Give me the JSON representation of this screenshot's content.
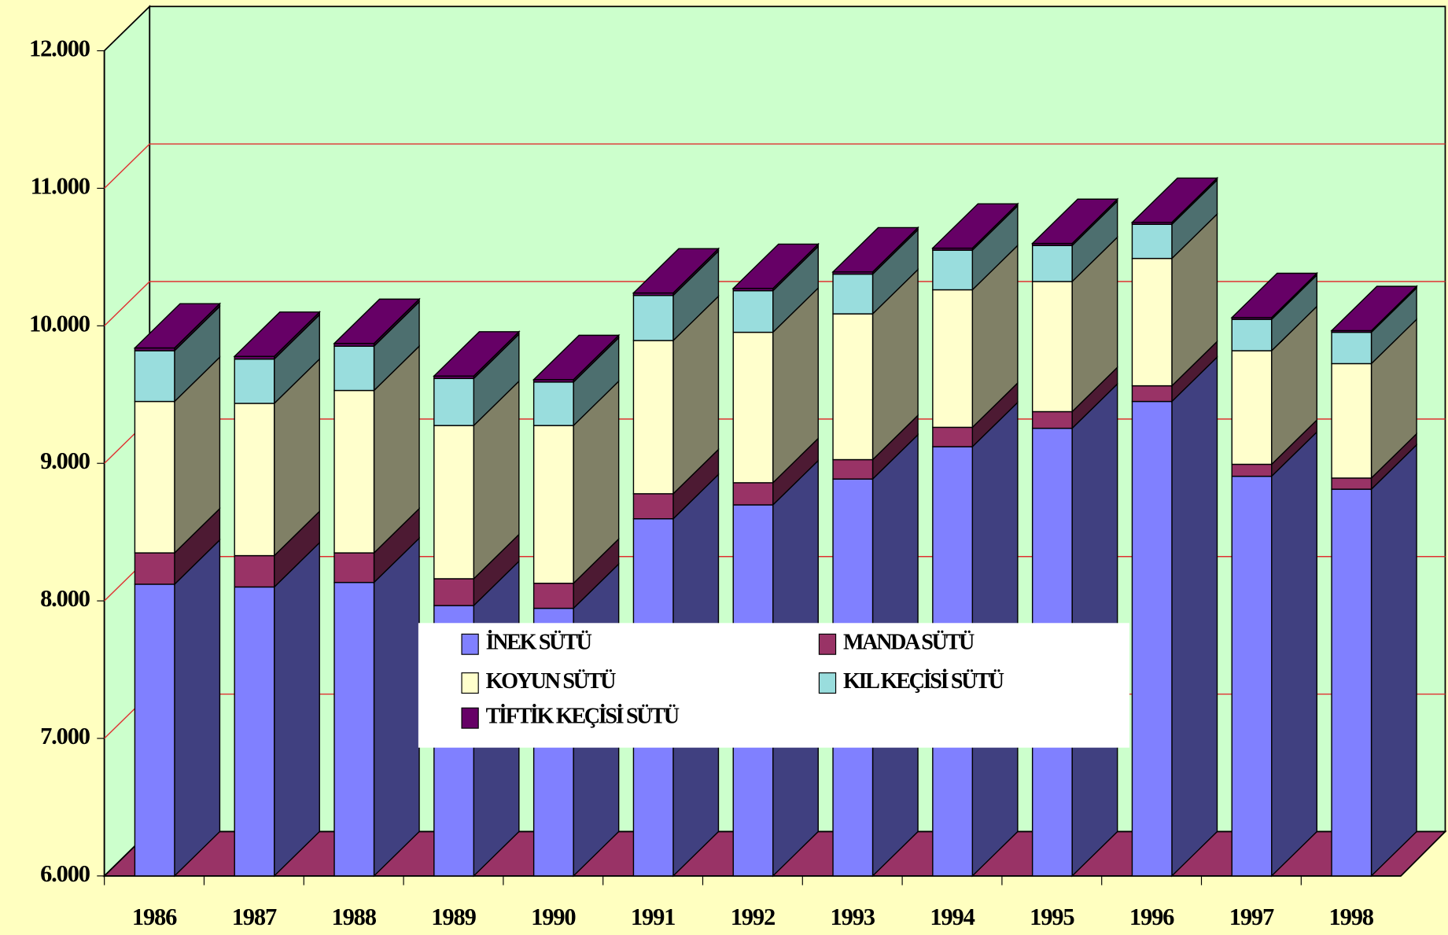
{
  "chart_data": {
    "type": "bar3d_stacked",
    "categories": [
      "1986",
      "1987",
      "1988",
      "1989",
      "1990",
      "1991",
      "1992",
      "1993",
      "1994",
      "1995",
      "1996",
      "1997",
      "1998"
    ],
    "series": [
      {
        "name": "İNEK SÜTÜ",
        "color": "#8080ff",
        "values": [
          8121,
          8101,
          8134,
          7966,
          7946,
          8597,
          8698,
          8886,
          9121,
          9255,
          9450,
          8906,
          8812
        ]
      },
      {
        "name": "MANDA SÜTÜ",
        "color": "#993366",
        "values": [
          228,
          228,
          215,
          195,
          182,
          182,
          161,
          141,
          141,
          121,
          114,
          87,
          81
        ]
      },
      {
        "name": "KOYUN SÜTÜ",
        "color": "#ffffcc",
        "values": [
          1101,
          1107,
          1181,
          1114,
          1147,
          1114,
          1094,
          1060,
          1000,
          946,
          926,
          826,
          832
        ]
      },
      {
        "name": "KIL KEÇİSİ SÜTÜ",
        "color": "#99dddd",
        "values": [
          369,
          322,
          322,
          342,
          316,
          328,
          302,
          289,
          288,
          262,
          248,
          228,
          228
        ]
      },
      {
        "name": "TİFTİK KEÇİSİ SÜTÜ",
        "color": "#660066",
        "values": [
          20,
          20,
          20,
          18,
          18,
          18,
          17,
          16,
          15,
          15,
          14,
          13,
          12
        ]
      }
    ],
    "ylim": [
      6000,
      12000
    ],
    "yticks": [
      {
        "value": 6000,
        "label": "6.000"
      },
      {
        "value": 7000,
        "label": "7.000"
      },
      {
        "value": 8000,
        "label": "8.000"
      },
      {
        "value": 9000,
        "label": "9.000"
      },
      {
        "value": 10000,
        "label": "10.000"
      },
      {
        "value": 11000,
        "label": "11.000"
      },
      {
        "value": 12000,
        "label": "12.000"
      }
    ],
    "grid": true
  }
}
